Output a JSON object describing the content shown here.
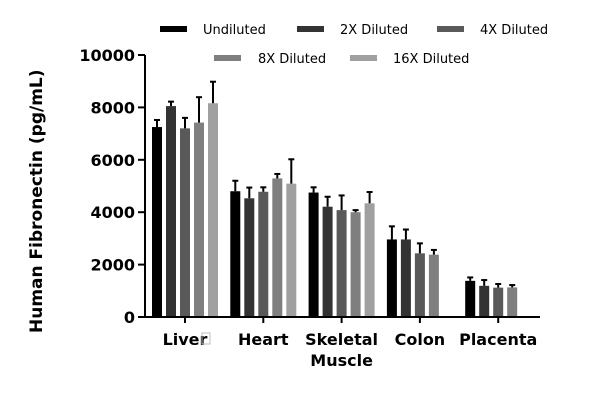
{
  "chart_data": {
    "type": "bar",
    "title": "",
    "xlabel": "",
    "ylabel": "Human Fibronectin (pg/mL)",
    "ylim": [
      0,
      10000
    ],
    "yticks": [
      0,
      2000,
      4000,
      6000,
      8000,
      10000
    ],
    "grid": false,
    "legend_position": "top",
    "categories": [
      "Liver",
      "Heart",
      "Skeletal Muscle",
      "Colon",
      "Placenta"
    ],
    "category_label_lines": [
      [
        "Liver"
      ],
      [
        "Heart"
      ],
      [
        "Skeletal",
        "Muscle"
      ],
      [
        "Colon"
      ],
      [
        "Placenta"
      ]
    ],
    "series": [
      {
        "name": "Undiluted",
        "color": "#000000",
        "values": [
          7250,
          4800,
          4750,
          2960,
          1380
        ],
        "error": [
          270,
          400,
          200,
          500,
          130
        ]
      },
      {
        "name": "2X Diluted",
        "color": "#333333",
        "values": [
          8050,
          4530,
          4210,
          2960,
          1190
        ],
        "error": [
          170,
          410,
          380,
          380,
          220
        ]
      },
      {
        "name": "4X Diluted",
        "color": "#595959",
        "values": [
          7200,
          4780,
          4080,
          2430,
          1120
        ],
        "error": [
          400,
          170,
          560,
          380,
          140
        ]
      },
      {
        "name": "8X Diluted",
        "color": "#7f7f7f",
        "values": [
          7420,
          5290,
          4000,
          2380,
          1130
        ],
        "error": [
          970,
          170,
          80,
          180,
          90
        ]
      },
      {
        "name": "16X Diluted",
        "color": "#a0a0a0",
        "values": [
          8160,
          5090,
          4340,
          null,
          null
        ],
        "error": [
          820,
          930,
          430,
          null,
          null
        ]
      }
    ]
  }
}
